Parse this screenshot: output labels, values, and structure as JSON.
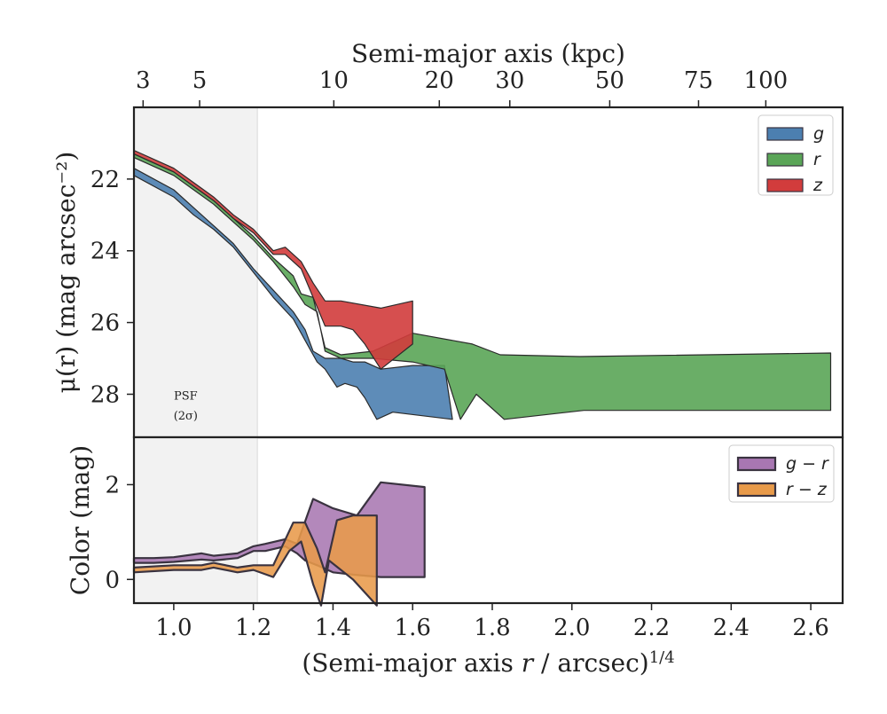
{
  "chart_data": [
    {
      "type": "area",
      "panel": "surface-brightness",
      "ylabel": "μ(r) (mag arcsec⁻²)",
      "top_xlabel": "Semi-major axis (kpc)",
      "top_ticks": [
        {
          "label": "3",
          "x": 0.923
        },
        {
          "label": "5",
          "x": 1.065
        },
        {
          "label": "10",
          "x": 1.402
        },
        {
          "label": "20",
          "x": 1.667
        },
        {
          "label": "30",
          "x": 1.844
        },
        {
          "label": "50",
          "x": 2.095
        },
        {
          "label": "75",
          "x": 2.318
        },
        {
          "label": "100",
          "x": 2.487
        }
      ],
      "xlim": [
        0.9,
        2.68
      ],
      "ylim": [
        29.2,
        20.0
      ],
      "yticks": [
        22,
        24,
        26,
        28
      ],
      "ytick_labels": [
        "22",
        "24",
        "26",
        "28"
      ],
      "psf_label": [
        "PSF",
        "(2σ)"
      ],
      "psf_x": 1.21,
      "legend": {
        "location": "upper right",
        "entries": [
          "g",
          "r",
          "z"
        ]
      },
      "series": [
        {
          "name": "g",
          "color": "#4c7fb0",
          "x_upper": [
            0.9,
            1.0,
            1.05,
            1.1,
            1.15,
            1.2,
            1.25,
            1.3,
            1.33,
            1.35,
            1.38,
            1.42,
            1.45,
            1.48,
            1.52,
            1.6,
            1.68
          ],
          "upper": [
            21.7,
            22.3,
            22.8,
            23.3,
            23.8,
            24.5,
            25.1,
            25.7,
            26.2,
            26.8,
            27.0,
            27.0,
            27.1,
            27.1,
            27.3,
            27.2,
            27.2
          ],
          "x_lower": [
            0.9,
            1.0,
            1.05,
            1.1,
            1.15,
            1.2,
            1.25,
            1.3,
            1.33,
            1.36,
            1.38,
            1.41,
            1.43,
            1.46,
            1.48,
            1.51,
            1.55,
            1.7
          ],
          "lower": [
            21.9,
            22.5,
            23.0,
            23.4,
            23.9,
            24.6,
            25.3,
            25.9,
            26.5,
            27.1,
            27.3,
            27.8,
            27.7,
            27.8,
            28.1,
            28.7,
            28.5,
            28.7
          ]
        },
        {
          "name": "r",
          "color": "#5aa557",
          "x_upper": [
            0.9,
            1.0,
            1.05,
            1.1,
            1.15,
            1.2,
            1.25,
            1.3,
            1.32,
            1.35,
            1.38,
            1.42,
            1.5,
            1.6,
            1.7,
            1.75,
            1.82,
            2.02,
            2.65
          ],
          "upper": [
            21.3,
            21.8,
            22.2,
            22.6,
            23.1,
            23.6,
            24.2,
            24.7,
            25.2,
            25.3,
            26.7,
            26.9,
            26.8,
            26.3,
            26.5,
            26.6,
            26.9,
            26.95,
            26.85
          ],
          "x_lower": [
            0.9,
            1.0,
            1.05,
            1.1,
            1.15,
            1.2,
            1.25,
            1.3,
            1.33,
            1.36,
            1.38,
            1.42,
            1.5,
            1.6,
            1.68,
            1.72,
            1.76,
            1.83,
            2.03,
            2.65
          ],
          "lower": [
            21.4,
            21.9,
            22.3,
            22.7,
            23.2,
            23.7,
            24.3,
            25.0,
            25.5,
            25.7,
            26.8,
            27.0,
            27.0,
            27.1,
            27.3,
            28.7,
            28.0,
            28.7,
            28.45,
            28.45
          ]
        },
        {
          "name": "z",
          "color": "#d23c3c",
          "x_upper": [
            0.9,
            1.0,
            1.05,
            1.1,
            1.15,
            1.2,
            1.25,
            1.28,
            1.32,
            1.35,
            1.38,
            1.42,
            1.52,
            1.6
          ],
          "upper": [
            21.2,
            21.7,
            22.1,
            22.5,
            23.0,
            23.4,
            24.0,
            23.9,
            24.3,
            24.9,
            25.4,
            25.4,
            25.6,
            25.4
          ],
          "x_lower": [
            0.9,
            1.0,
            1.05,
            1.1,
            1.15,
            1.2,
            1.25,
            1.28,
            1.32,
            1.35,
            1.38,
            1.42,
            1.45,
            1.48,
            1.52,
            1.6
          ],
          "lower": [
            21.3,
            21.8,
            22.2,
            22.6,
            23.1,
            23.5,
            24.1,
            24.1,
            24.5,
            25.3,
            26.1,
            26.1,
            26.2,
            26.6,
            27.3,
            26.6
          ]
        }
      ]
    },
    {
      "type": "area",
      "panel": "color",
      "xlabel": "(Semi-major axis r / arcsec)^1/4",
      "ylabel": "Color (mag)",
      "xlim": [
        0.9,
        2.68
      ],
      "xticks": [
        1.0,
        1.2,
        1.4,
        1.6,
        1.8,
        2.0,
        2.2,
        2.4,
        2.6
      ],
      "xtick_labels": [
        "1.0",
        "1.2",
        "1.4",
        "1.6",
        "1.8",
        "2.0",
        "2.2",
        "2.4",
        "2.6"
      ],
      "ylim": [
        -0.5,
        3.0
      ],
      "yticks": [
        0,
        2
      ],
      "ytick_labels": [
        "0",
        "2"
      ],
      "legend": {
        "location": "upper right",
        "entries": [
          "g − r",
          "r − z"
        ]
      },
      "series": [
        {
          "name": "g − r",
          "color": "#a877b2",
          "x_upper": [
            0.9,
            0.95,
            1.0,
            1.07,
            1.1,
            1.16,
            1.2,
            1.23,
            1.28,
            1.31,
            1.35,
            1.4,
            1.46,
            1.52,
            1.63
          ],
          "upper": [
            0.45,
            0.45,
            0.47,
            0.55,
            0.5,
            0.55,
            0.7,
            0.75,
            0.85,
            0.75,
            1.7,
            1.5,
            1.35,
            2.05,
            1.95
          ],
          "x_lower": [
            0.9,
            0.95,
            1.0,
            1.07,
            1.1,
            1.16,
            1.2,
            1.23,
            1.28,
            1.31,
            1.33,
            1.36,
            1.4,
            1.45,
            1.52,
            1.63
          ],
          "lower": [
            0.35,
            0.35,
            0.37,
            0.42,
            0.4,
            0.45,
            0.6,
            0.6,
            0.7,
            0.55,
            0.4,
            0.3,
            0.15,
            0.1,
            0.05,
            0.05
          ]
        },
        {
          "name": "r − z",
          "color": "#e89a4a",
          "x_upper": [
            0.9,
            1.0,
            1.07,
            1.1,
            1.16,
            1.2,
            1.25,
            1.3,
            1.33,
            1.36,
            1.38,
            1.41,
            1.45,
            1.51
          ],
          "upper": [
            0.25,
            0.3,
            0.3,
            0.35,
            0.25,
            0.3,
            0.3,
            1.2,
            1.2,
            0.65,
            0.15,
            1.25,
            1.35,
            1.35
          ],
          "x_lower": [
            0.9,
            1.0,
            1.07,
            1.1,
            1.16,
            1.2,
            1.25,
            1.29,
            1.32,
            1.35,
            1.37,
            1.39,
            1.45,
            1.51
          ],
          "lower": [
            0.15,
            0.2,
            0.2,
            0.25,
            0.15,
            0.2,
            0.05,
            0.6,
            0.8,
            -0.1,
            -0.55,
            0.4,
            0.0,
            -0.55
          ]
        }
      ]
    }
  ]
}
